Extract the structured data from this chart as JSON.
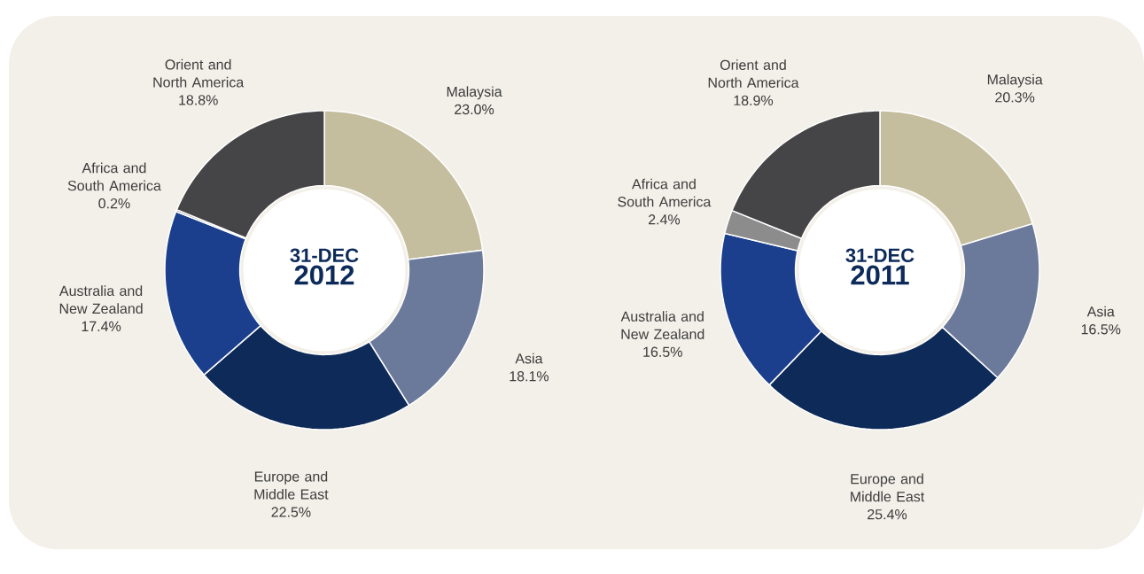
{
  "chart_data": [
    {
      "type": "donut",
      "title": "31-DEC",
      "subtitle": "2012",
      "categories": [
        "Malaysia",
        "Asia",
        "Europe and Middle East",
        "Australia and New Zealand",
        "Africa and South America",
        "Orient and North America"
      ],
      "values": [
        23.0,
        18.1,
        22.5,
        17.4,
        0.2,
        18.8
      ],
      "value_labels": [
        "23.0%",
        "18.1%",
        "22.5%",
        "17.4%",
        "0.2%",
        "18.8%"
      ],
      "colors": [
        "#c4bd9e",
        "#6b7a9a",
        "#0e2a58",
        "#1b3f8c",
        "#8c8c8c",
        "#454547"
      ]
    },
    {
      "type": "donut",
      "title": "31-DEC",
      "subtitle": "2011",
      "categories": [
        "Malaysia",
        "Asia",
        "Europe and Middle East",
        "Australia and New Zealand",
        "Africa and South America",
        "Orient and North America"
      ],
      "values": [
        20.3,
        16.5,
        25.4,
        16.5,
        2.4,
        18.9
      ],
      "value_labels": [
        "20.3%",
        "16.5%",
        "25.4%",
        "16.5%",
        "2.4%",
        "18.9%"
      ],
      "colors": [
        "#c4bd9e",
        "#6b7a9a",
        "#0e2a58",
        "#1b3f8c",
        "#8c8c8c",
        "#454547"
      ]
    }
  ]
}
